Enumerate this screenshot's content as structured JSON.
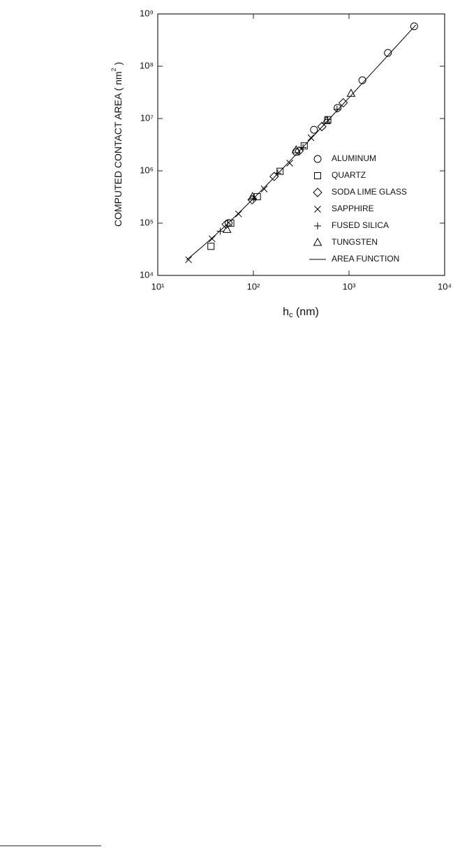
{
  "chart_data": {
    "type": "scatter",
    "y_label": [
      "COMPUTED CONTACT AREA ( nm",
      "2",
      " )"
    ],
    "x_label": [
      "h",
      "c",
      " (nm)"
    ],
    "log_x": true,
    "log_y": true,
    "xlim": [
      10,
      10000
    ],
    "xticks": [
      {
        "value": 10,
        "label": "10¹"
      },
      {
        "value": 100,
        "label": "10²"
      },
      {
        "value": 1000,
        "label": "10³"
      },
      {
        "value": 10000,
        "label": "10⁴"
      }
    ],
    "ylim": [
      10000,
      1000000000
    ],
    "yticks": [
      {
        "value": 10000,
        "label": "10⁴"
      },
      {
        "value": 100000,
        "label": "10⁵"
      },
      {
        "value": 1000000,
        "label": "10⁶"
      },
      {
        "value": 10000000,
        "label": "10⁷"
      },
      {
        "value": 100000000,
        "label": "10⁸"
      },
      {
        "value": 1000000000,
        "label": "10⁹"
      }
    ],
    "legend": "right",
    "series": [
      {
        "name": "ALUMINUM",
        "marker": "circle",
        "color": "#000000",
        "x": [
          55,
          280,
          430,
          760,
          1380,
          2550,
          4800
        ],
        "values": [
          100000,
          2300000,
          6100000,
          16000000,
          54000000,
          180000000,
          580000000
        ]
      },
      {
        "name": "QUARTZ",
        "marker": "square",
        "color": "#000000",
        "x": [
          36,
          58,
          110,
          190,
          340,
          600
        ],
        "values": [
          36000,
          100000,
          320000,
          980000,
          3000000,
          9500000
        ]
      },
      {
        "name": "SODA LIME GLASS",
        "marker": "diamond",
        "color": "#000000",
        "x": [
          52,
          97,
          165,
          300,
          520,
          870
        ],
        "values": [
          95000,
          280000,
          780000,
          2400000,
          7000000,
          20000000
        ]
      },
      {
        "name": "SAPPHIRE",
        "marker": "x",
        "color": "#000000",
        "x": [
          21,
          37,
          70,
          130,
          240,
          400
        ],
        "values": [
          20000,
          50000,
          150000,
          450000,
          1400000,
          4300000
        ]
      },
      {
        "name": "FUSED SILICA",
        "marker": "plus",
        "color": "#000000",
        "x": [
          45,
          100,
          180,
          330,
          600,
          750
        ],
        "values": [
          70000,
          300000,
          900000,
          2800000,
          9500000,
          15000000
        ]
      },
      {
        "name": "TUNGSTEN",
        "marker": "triangle",
        "color": "#000000",
        "x": [
          53,
          98,
          280,
          580,
          1050
        ],
        "values": [
          75000,
          320000,
          2500000,
          9000000,
          30000000
        ]
      },
      {
        "name": "AREA FUNCTION",
        "marker": "line",
        "color": "#000000",
        "x": [
          20,
          25,
          30,
          40,
          50,
          70,
          100,
          150,
          200,
          300,
          500,
          700,
          1000,
          2000,
          3000,
          5000
        ],
        "values": [
          19800,
          27800,
          37000,
          59200,
          86200,
          155000,
          295000,
          626000,
          1080000,
          2360000,
          6380000,
          12400000,
          25000000,
          99000000,
          222000000,
          615000000
        ]
      }
    ]
  }
}
